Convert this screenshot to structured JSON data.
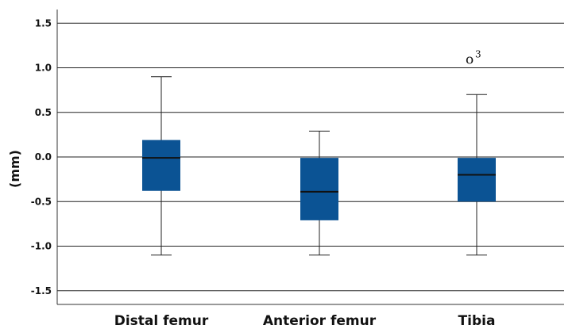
{
  "chart_data": {
    "type": "boxplot",
    "ylabel": "(mm)",
    "ylim": [
      -1.65,
      1.65
    ],
    "yticks": [
      1.5,
      1.0,
      0.5,
      0.0,
      -0.5,
      -1.0,
      -1.5
    ],
    "ytick_labels": [
      "1.5",
      "1.0",
      "0.5",
      "0.0",
      "-0.5",
      "-1.0",
      "-1.5"
    ],
    "categories": [
      "Distal femur",
      "Anterior femur",
      "Tibia"
    ],
    "boxes": [
      {
        "category": "Distal femur",
        "whisker_low": -1.1,
        "q1": -0.38,
        "median": -0.01,
        "q3": 0.19,
        "whisker_high": 0.9
      },
      {
        "category": "Anterior femur",
        "whisker_low": -1.1,
        "q1": -0.71,
        "median": -0.39,
        "q3": -0.01,
        "whisker_high": 0.29
      },
      {
        "category": "Tibia",
        "whisker_low": -1.1,
        "q1": -0.5,
        "median": -0.2,
        "q3": -0.01,
        "whisker_high": 0.7
      }
    ],
    "outliers": [
      {
        "category": "Tibia",
        "value": 1.1,
        "marker": "o",
        "label": "3"
      }
    ],
    "box_color": "#0b5394",
    "grid": "horizontal"
  }
}
